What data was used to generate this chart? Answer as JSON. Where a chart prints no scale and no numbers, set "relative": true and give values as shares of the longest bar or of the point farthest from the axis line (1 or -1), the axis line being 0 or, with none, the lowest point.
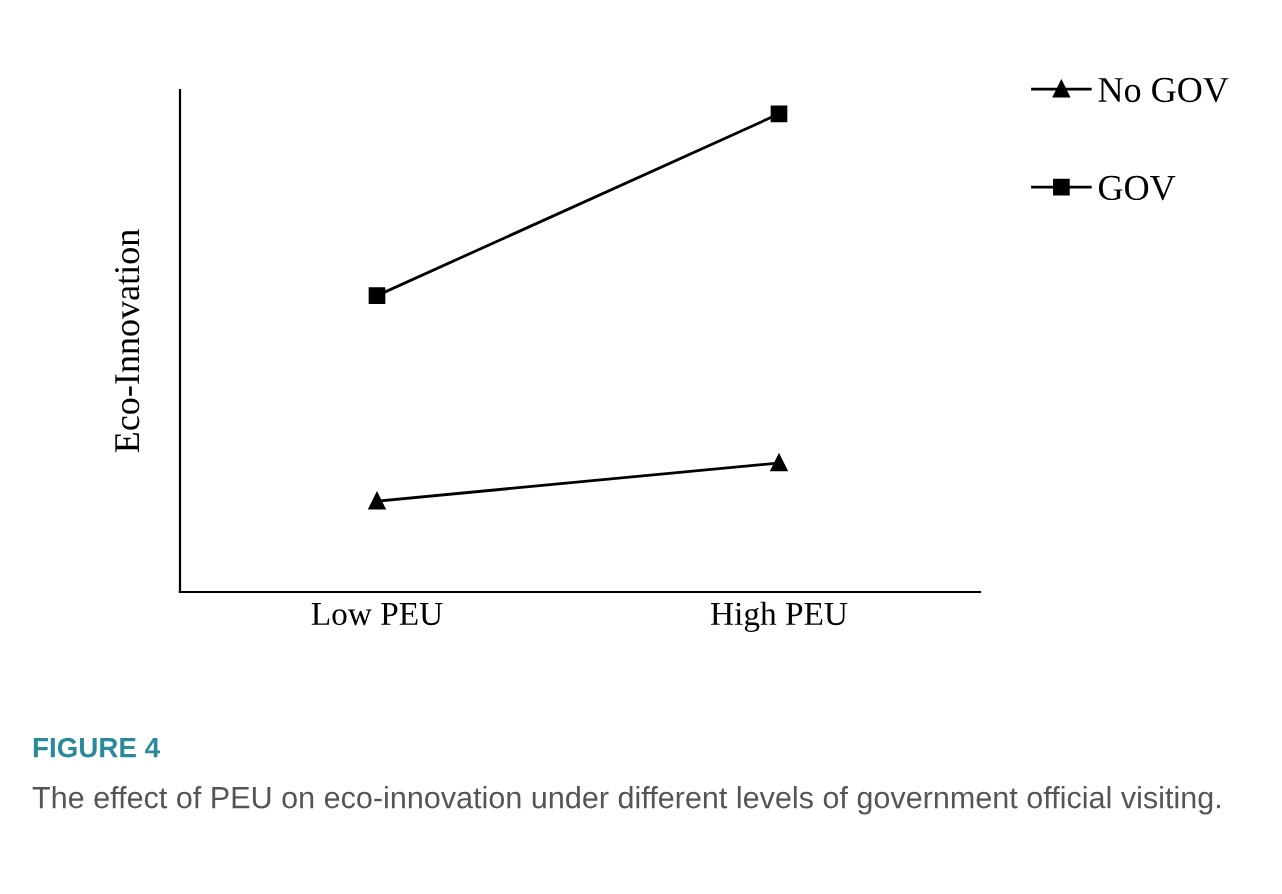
{
  "chart_data": {
    "type": "line",
    "relative": true,
    "ylabel": "Eco-Innovation",
    "categories": [
      "Low PEU",
      "High PEU"
    ],
    "series": [
      {
        "name": "No GOV",
        "color": "#000000",
        "marker": "triangle",
        "values": [
          0.19,
          0.27
        ]
      },
      {
        "name": "GOV",
        "color": "#000000",
        "marker": "square",
        "values": [
          0.62,
          1
        ]
      }
    ],
    "legend": "top right",
    "grid": false,
    "tick_labels": "x",
    "line_style": "solid",
    "annotations": [
      "FIGURE 4",
      "The effect of PEU on eco-innovation under different levels of government official visiting."
    ]
  }
}
